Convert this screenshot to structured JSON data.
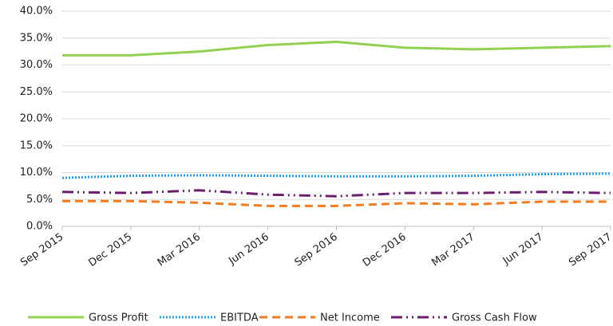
{
  "chart_data": {
    "type": "line",
    "categories": [
      "Sep 2015",
      "Dec 2015",
      "Mar 2016",
      "Jun 2016",
      "Sep 2016",
      "Dec 2016",
      "Mar 2017",
      "Jun 2017",
      "Sep 2017"
    ],
    "series": [
      {
        "name": "Gross Profit",
        "color": "#92d050",
        "dash": "none",
        "values": [
          31.8,
          31.8,
          32.5,
          33.7,
          34.3,
          33.2,
          32.9,
          33.2,
          33.5
        ]
      },
      {
        "name": "EBITDA",
        "color": "#1fa0e8",
        "dash": "2 2",
        "values": [
          9.0,
          9.4,
          9.5,
          9.4,
          9.3,
          9.3,
          9.4,
          9.7,
          9.8
        ]
      },
      {
        "name": "Net Income",
        "color": "#f47b20",
        "dash": "10 6",
        "values": [
          4.7,
          4.7,
          4.4,
          3.8,
          3.8,
          4.3,
          4.1,
          4.6,
          4.6
        ]
      },
      {
        "name": "Gross Cash Flow",
        "color": "#6b1e6e",
        "dash": "14 5 2 5 2 5",
        "values": [
          6.4,
          6.2,
          6.7,
          5.9,
          5.6,
          6.2,
          6.2,
          6.4,
          6.2
        ]
      }
    ],
    "ylim": [
      0,
      40
    ],
    "yticks": [
      {
        "value": 0,
        "label": "0.0%"
      },
      {
        "value": 5,
        "label": "5.0%"
      },
      {
        "value": 10,
        "label": "10.0%"
      },
      {
        "value": 15,
        "label": "15.0%"
      },
      {
        "value": 20,
        "label": "20.0%"
      },
      {
        "value": 25,
        "label": "25.0%"
      },
      {
        "value": 30,
        "label": "30.0%"
      },
      {
        "value": 35,
        "label": "35.0%"
      },
      {
        "value": 40,
        "label": "40.0%"
      }
    ],
    "grid": true
  }
}
